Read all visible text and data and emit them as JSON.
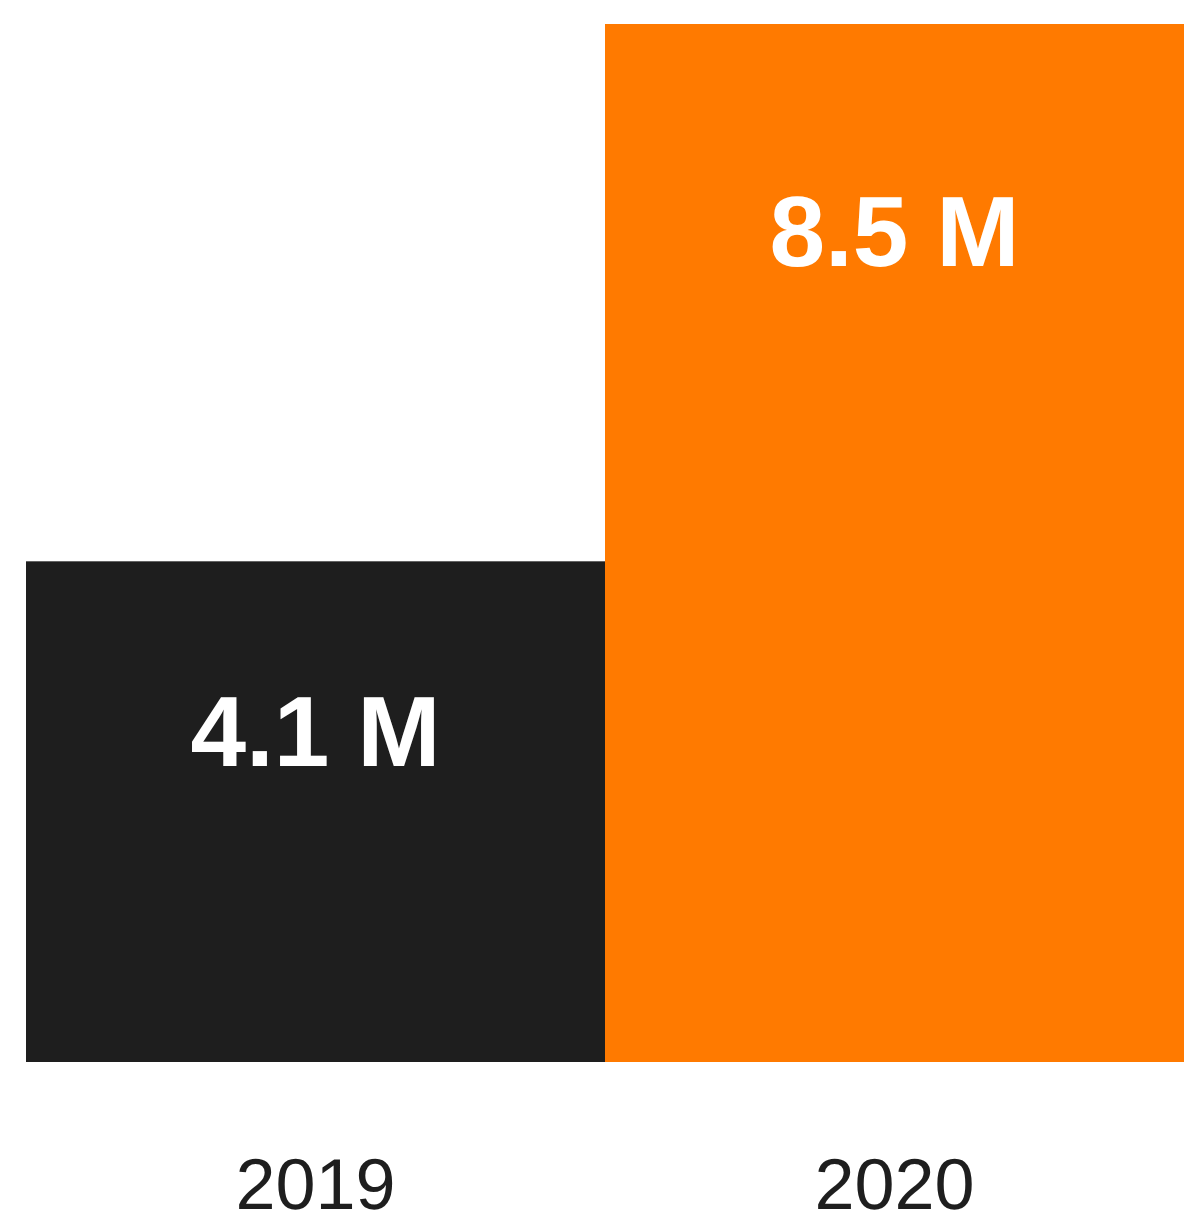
{
  "chart_data": {
    "type": "bar",
    "categories": [
      "2019",
      "2020"
    ],
    "values": [
      4.1,
      8.5
    ],
    "colors": [
      "#1e1e1e",
      "#ff7a00"
    ],
    "value_labels": [
      "4.1 M",
      "8.5 M"
    ]
  }
}
